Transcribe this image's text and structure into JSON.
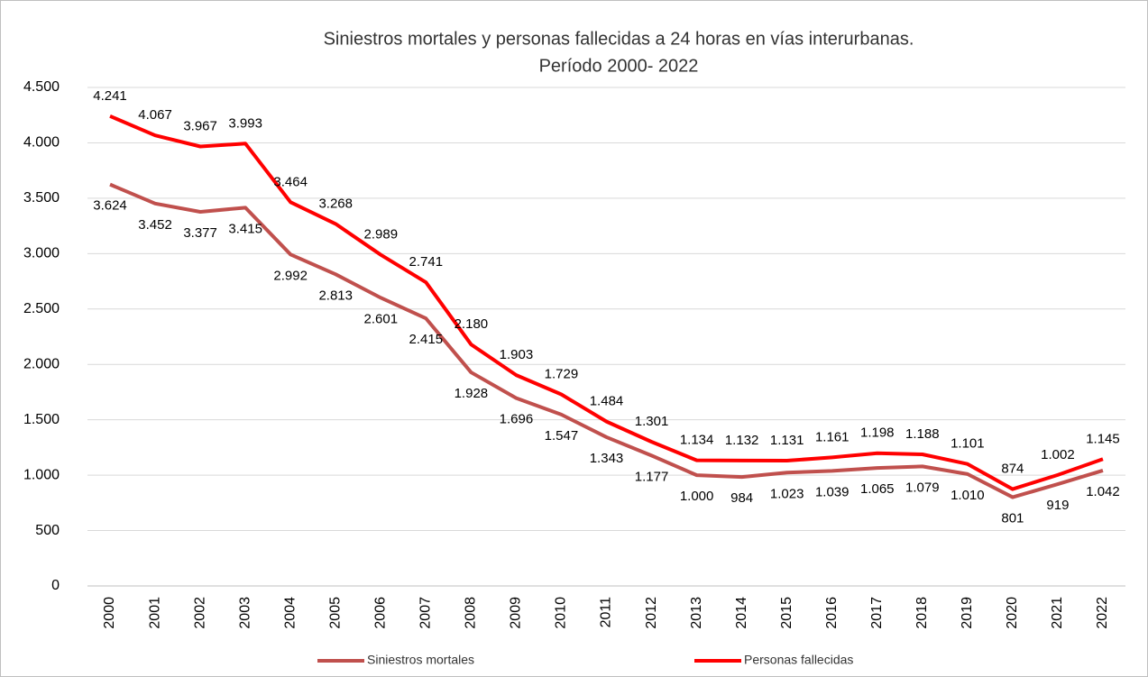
{
  "chart_data": {
    "type": "line",
    "title": [
      "Siniestros mortales y personas fallecidas a 24 horas en vías interurbanas.",
      "Período 2000- 2022"
    ],
    "categories": [
      "2000",
      "2001",
      "2002",
      "2003",
      "2004",
      "2005",
      "2006",
      "2007",
      "2008",
      "2009",
      "2010",
      "2011",
      "2012",
      "2013",
      "2014",
      "2015",
      "2016",
      "2017",
      "2018",
      "2019",
      "2020",
      "2021",
      "2022"
    ],
    "series": [
      {
        "name": "Siniestros mortales",
        "color": "#c0504d",
        "values": [
          3624,
          3452,
          3377,
          3415,
          2992,
          2813,
          2601,
          2415,
          1928,
          1696,
          1547,
          1343,
          1177,
          1000,
          984,
          1023,
          1039,
          1065,
          1079,
          1010,
          801,
          919,
          1042
        ],
        "value_labels": [
          "3.624",
          "3.452",
          "3.377",
          "3.415",
          "2.992",
          "2.813",
          "2.601",
          "2.415",
          "1.928",
          "1.696",
          "1.547",
          "1.343",
          "1.177",
          "1.000",
          "984",
          "1.023",
          "1.039",
          "1.065",
          "1.079",
          "1.010",
          "801",
          "919",
          "1.042"
        ]
      },
      {
        "name": "Personas fallecidas",
        "color": "#ff0000",
        "values": [
          4241,
          4067,
          3967,
          3993,
          3464,
          3268,
          2989,
          2741,
          2180,
          1903,
          1729,
          1484,
          1301,
          1134,
          1132,
          1131,
          1161,
          1198,
          1188,
          1101,
          874,
          1002,
          1145
        ],
        "value_labels": [
          "4.241",
          "4.067",
          "3.967",
          "3.993",
          "3.464",
          "3.268",
          "2.989",
          "2.741",
          "2.180",
          "1.903",
          "1.729",
          "1.484",
          "1.301",
          "1.134",
          "1.132",
          "1.131",
          "1.161",
          "1.198",
          "1.188",
          "1.101",
          "874",
          "1.002",
          "1.145"
        ]
      }
    ],
    "ylim": [
      0,
      4500
    ],
    "yticks": [
      0,
      500,
      {
        "value": 1000,
        "label": "1.000"
      },
      {
        "value": 1500,
        "label": "1.500"
      },
      {
        "value": 2000,
        "label": "2.000"
      },
      {
        "value": 2500,
        "label": "2.500"
      },
      {
        "value": 3000,
        "label": "3.000"
      },
      {
        "value": 3500,
        "label": "3.500"
      },
      {
        "value": 4000,
        "label": "4.000"
      },
      {
        "value": 4500,
        "label": "4.500"
      }
    ],
    "grid": true,
    "legend": "bottom"
  }
}
